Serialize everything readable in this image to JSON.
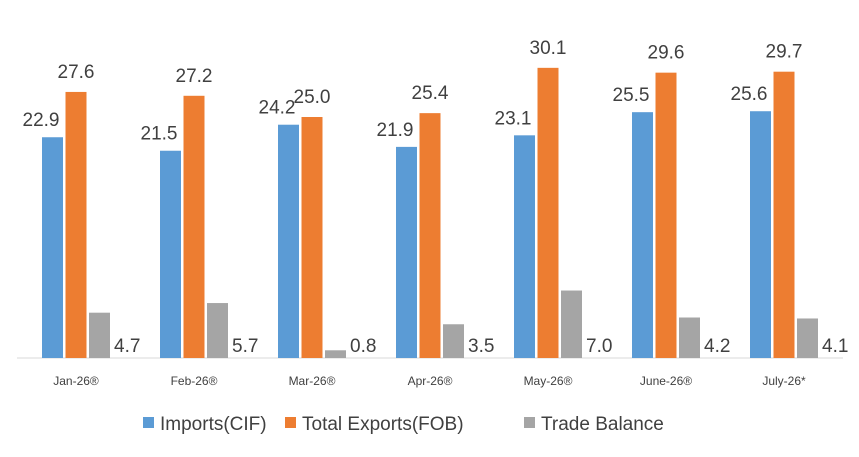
{
  "chart_data": {
    "type": "bar",
    "categories": [
      "Jan-26®",
      "Feb-26®",
      "Mar-26®",
      "Apr-26®",
      "May-26®",
      "June-26®",
      "July-26*"
    ],
    "series": [
      {
        "name": "Imports(CIF)",
        "color": "#5B9BD5",
        "values": [
          22.9,
          21.5,
          24.2,
          21.9,
          23.1,
          25.5,
          25.6
        ],
        "labels": [
          "22.9",
          "21.5",
          "24.2",
          "21.9",
          "23.1",
          "25.5",
          "25.6"
        ]
      },
      {
        "name": "Total Exports(FOB)",
        "color": "#ED7D31",
        "values": [
          27.6,
          27.2,
          25.0,
          25.4,
          30.1,
          29.6,
          29.7
        ],
        "labels": [
          "27.6",
          "27.2",
          "25.0",
          "25.4",
          "30.1",
          "29.6",
          "29.7"
        ]
      },
      {
        "name": "Trade Balance",
        "color": "#A5A5A5",
        "values": [
          4.7,
          5.7,
          0.8,
          3.5,
          7.0,
          4.2,
          4.1
        ],
        "labels": [
          "4.7",
          "5.7",
          "0.8",
          "3.5",
          "7.0",
          "4.2",
          "4.1"
        ]
      }
    ],
    "ylim": [
      0,
      33
    ],
    "grid": false,
    "legend": "bottom"
  }
}
